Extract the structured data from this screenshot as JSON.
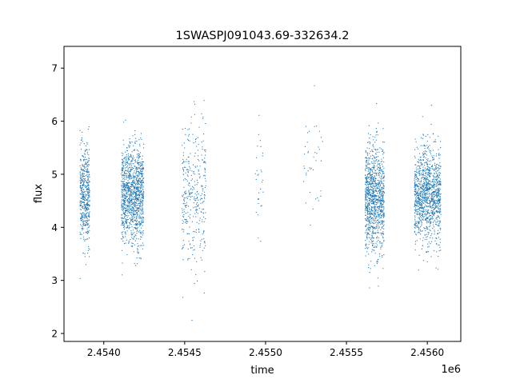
{
  "chart_data": {
    "type": "scatter",
    "title": "1SWASPJ091043.69-332634.2",
    "xlabel": "time",
    "ylabel": "flux",
    "x_offset_label": "1e6",
    "xlim": [
      2453754,
      2456207
    ],
    "ylim": [
      1.85,
      7.41
    ],
    "x_ticks": [
      2454000,
      2454500,
      2455000,
      2455500,
      2456000
    ],
    "x_tick_labels": [
      "2.4540",
      "2.4545",
      "2.4550",
      "2.4555",
      "2.4560"
    ],
    "y_ticks": [
      2,
      3,
      4,
      5,
      6,
      7
    ],
    "y_tick_labels": [
      "2",
      "3",
      "4",
      "5",
      "6",
      "7"
    ],
    "grid": false,
    "color": "#1f77b4",
    "series": [
      {
        "clusters": [
          {
            "time_range": [
              2453853,
              2453913
            ],
            "flux_mean": 4.6,
            "flux_sd": 0.45,
            "count": 500
          },
          {
            "time_range": [
              2454109,
              2454247
            ],
            "flux_mean": 4.6,
            "flux_sd": 0.45,
            "count": 1200
          },
          {
            "time_range": [
              2454483,
              2454631
            ],
            "flux_mean": 4.5,
            "flux_sd": 0.75,
            "count": 350
          },
          {
            "time_range": [
              2454936,
              2454986
            ],
            "flux_mean": 4.8,
            "flux_sd": 0.5,
            "count": 30
          },
          {
            "time_range": [
              2455232,
              2455355
            ],
            "flux_mean": 5.1,
            "flux_sd": 0.5,
            "count": 40
          },
          {
            "time_range": [
              2455616,
              2455734
            ],
            "flux_mean": 4.55,
            "flux_sd": 0.5,
            "count": 1100
          },
          {
            "time_range": [
              2455921,
              2456084
            ],
            "flux_mean": 4.6,
            "flux_sd": 0.45,
            "count": 1200
          }
        ]
      }
    ]
  }
}
